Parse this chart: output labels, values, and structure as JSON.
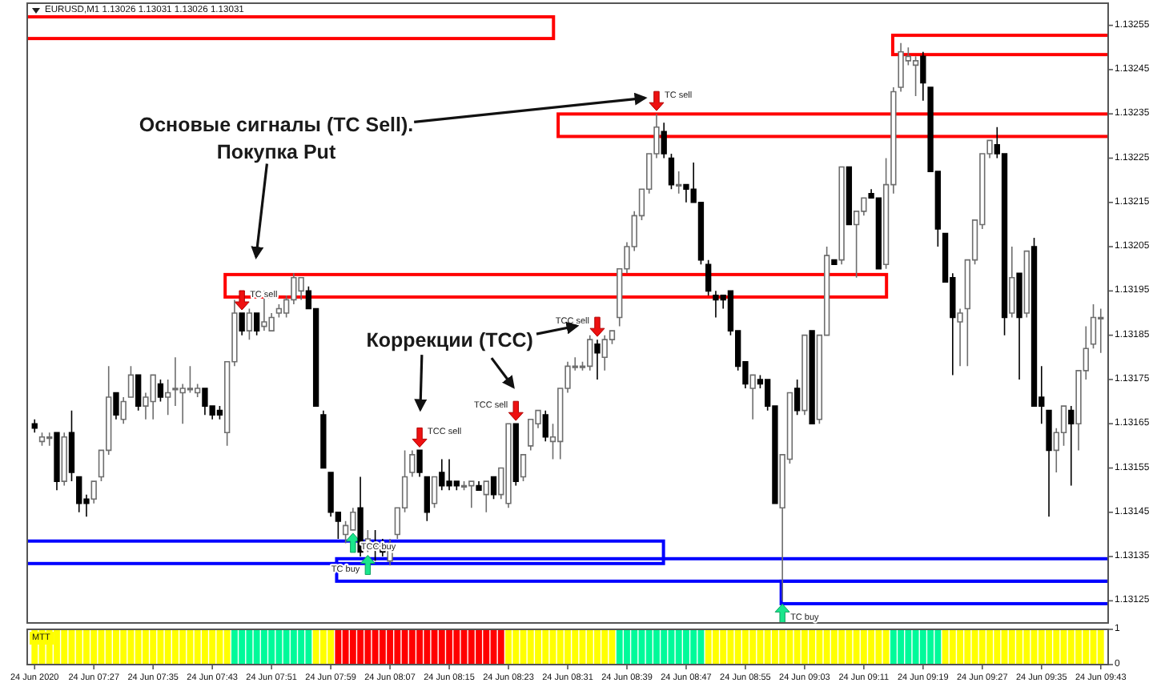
{
  "chart_data": [
    {
      "type": "candlestick",
      "title": "EURUSD,M1 1.13026 1.13031 1.13026 1.13031",
      "x": [
        "2020-06-24T07:19",
        "2020-06-24T07:20",
        "2020-06-24T07:21",
        "2020-06-24T07:22",
        "2020-06-24T07:23",
        "2020-06-24T07:24",
        "2020-06-24T07:25",
        "2020-06-24T07:26",
        "2020-06-24T07:27",
        "2020-06-24T07:28",
        "2020-06-24T07:29",
        "2020-06-24T07:30",
        "2020-06-24T07:31",
        "2020-06-24T07:32",
        "2020-06-24T07:33",
        "2020-06-24T07:34",
        "2020-06-24T07:35",
        "2020-06-24T07:36",
        "2020-06-24T07:37",
        "2020-06-24T07:38",
        "2020-06-24T07:39",
        "2020-06-24T07:40",
        "2020-06-24T07:41",
        "2020-06-24T07:42",
        "2020-06-24T07:43",
        "2020-06-24T07:44",
        "2020-06-24T07:45",
        "2020-06-24T07:46",
        "2020-06-24T07:47",
        "2020-06-24T07:48",
        "2020-06-24T07:49",
        "2020-06-24T07:50",
        "2020-06-24T07:51",
        "2020-06-24T07:52",
        "2020-06-24T07:53",
        "2020-06-24T07:54",
        "2020-06-24T07:55",
        "2020-06-24T07:56",
        "2020-06-24T07:57",
        "2020-06-24T07:58",
        "2020-06-24T07:59",
        "2020-06-24T08:00",
        "2020-06-24T08:01",
        "2020-06-24T08:02",
        "2020-06-24T08:03",
        "2020-06-24T08:04",
        "2020-06-24T08:05",
        "2020-06-24T08:06",
        "2020-06-24T08:07",
        "2020-06-24T08:08",
        "2020-06-24T08:09",
        "2020-06-24T08:10",
        "2020-06-24T08:11",
        "2020-06-24T08:12",
        "2020-06-24T08:13",
        "2020-06-24T08:14",
        "2020-06-24T08:15",
        "2020-06-24T08:16",
        "2020-06-24T08:17",
        "2020-06-24T08:18",
        "2020-06-24T08:19",
        "2020-06-24T08:20",
        "2020-06-24T08:21",
        "2020-06-24T08:22",
        "2020-06-24T08:23",
        "2020-06-24T08:24",
        "2020-06-24T08:25",
        "2020-06-24T08:26",
        "2020-06-24T08:27",
        "2020-06-24T08:28",
        "2020-06-24T08:29",
        "2020-06-24T08:30",
        "2020-06-24T08:31",
        "2020-06-24T08:32",
        "2020-06-24T08:33",
        "2020-06-24T08:34",
        "2020-06-24T08:35",
        "2020-06-24T08:36",
        "2020-06-24T08:37",
        "2020-06-24T08:38",
        "2020-06-24T08:39",
        "2020-06-24T08:40",
        "2020-06-24T08:41",
        "2020-06-24T08:42",
        "2020-06-24T08:43",
        "2020-06-24T08:44",
        "2020-06-24T08:45",
        "2020-06-24T08:46",
        "2020-06-24T08:47",
        "2020-06-24T08:48",
        "2020-06-24T08:49",
        "2020-06-24T08:50",
        "2020-06-24T08:51",
        "2020-06-24T08:52",
        "2020-06-24T08:53",
        "2020-06-24T08:54",
        "2020-06-24T08:55",
        "2020-06-24T08:56",
        "2020-06-24T08:57",
        "2020-06-24T08:58",
        "2020-06-24T08:59",
        "2020-06-24T09:00",
        "2020-06-24T09:01",
        "2020-06-24T09:02",
        "2020-06-24T09:03",
        "2020-06-24T09:04",
        "2020-06-24T09:05",
        "2020-06-24T09:06",
        "2020-06-24T09:07",
        "2020-06-24T09:08",
        "2020-06-24T09:09",
        "2020-06-24T09:10",
        "2020-06-24T09:11",
        "2020-06-24T09:12",
        "2020-06-24T09:13",
        "2020-06-24T09:14",
        "2020-06-24T09:15",
        "2020-06-24T09:16",
        "2020-06-24T09:17",
        "2020-06-24T09:18",
        "2020-06-24T09:19",
        "2020-06-24T09:20",
        "2020-06-24T09:21",
        "2020-06-24T09:22",
        "2020-06-24T09:23",
        "2020-06-24T09:24",
        "2020-06-24T09:25",
        "2020-06-24T09:26",
        "2020-06-24T09:27",
        "2020-06-24T09:28",
        "2020-06-24T09:29",
        "2020-06-24T09:30",
        "2020-06-24T09:31",
        "2020-06-24T09:32",
        "2020-06-24T09:33",
        "2020-06-24T09:34",
        "2020-06-24T09:35",
        "2020-06-24T09:36",
        "2020-06-24T09:37",
        "2020-06-24T09:38",
        "2020-06-24T09:39",
        "2020-06-24T09:40",
        "2020-06-24T09:41",
        "2020-06-24T09:42",
        "2020-06-24T09:43"
      ],
      "ohlc": [
        [
          1.13165,
          1.13166,
          1.13163,
          1.13164
        ],
        [
          1.13161,
          1.13163,
          1.1316,
          1.13162
        ],
        [
          1.13162,
          1.13163,
          1.1316,
          1.13162
        ],
        [
          1.13163,
          1.13163,
          1.1315,
          1.13152
        ],
        [
          1.13152,
          1.13163,
          1.13151,
          1.13162
        ],
        [
          1.13163,
          1.13168,
          1.13152,
          1.13154
        ],
        [
          1.13153,
          1.13153,
          1.13145,
          1.13147
        ],
        [
          1.13148,
          1.13149,
          1.13144,
          1.13147
        ],
        [
          1.13148,
          1.13152,
          1.13147,
          1.13152
        ],
        [
          1.13153,
          1.13159,
          1.13152,
          1.13159
        ],
        [
          1.13159,
          1.13178,
          1.13158,
          1.13171
        ],
        [
          1.13172,
          1.13172,
          1.13166,
          1.13167
        ],
        [
          1.13166,
          1.13171,
          1.13165,
          1.1317
        ],
        [
          1.13171,
          1.13178,
          1.13171,
          1.13176
        ],
        [
          1.13176,
          1.13176,
          1.13168,
          1.13169
        ],
        [
          1.13169,
          1.13172,
          1.13166,
          1.13171
        ],
        [
          1.1317,
          1.13176,
          1.13166,
          1.13176
        ],
        [
          1.13174,
          1.13175,
          1.1317,
          1.13171
        ],
        [
          1.13171,
          1.13175,
          1.13167,
          1.13172
        ],
        [
          1.13173,
          1.1318,
          1.13169,
          1.13173
        ],
        [
          1.13172,
          1.13174,
          1.13165,
          1.13173
        ],
        [
          1.13173,
          1.13178,
          1.13172,
          1.13173
        ],
        [
          1.13172,
          1.13174,
          1.13171,
          1.13173
        ],
        [
          1.13173,
          1.13173,
          1.13167,
          1.13169
        ],
        [
          1.13169,
          1.13169,
          1.13166,
          1.13167
        ],
        [
          1.13168,
          1.13169,
          1.13166,
          1.13167
        ],
        [
          1.13163,
          1.13179,
          1.1316,
          1.13179
        ],
        [
          1.13179,
          1.13193,
          1.13178,
          1.1319
        ],
        [
          1.1319,
          1.1319,
          1.13185,
          1.13186
        ],
        [
          1.13186,
          1.13191,
          1.13184,
          1.1319
        ],
        [
          1.1319,
          1.1319,
          1.13185,
          1.13186
        ],
        [
          1.13187,
          1.13195,
          1.13186,
          1.13188
        ],
        [
          1.13186,
          1.1319,
          1.13186,
          1.13189
        ],
        [
          1.1319,
          1.13192,
          1.13189,
          1.13191
        ],
        [
          1.1319,
          1.13194,
          1.13189,
          1.13193
        ],
        [
          1.13193,
          1.13199,
          1.13192,
          1.13198
        ],
        [
          1.13195,
          1.13198,
          1.13193,
          1.13198
        ],
        [
          1.13195,
          1.13196,
          1.13191,
          1.13191
        ],
        [
          1.13191,
          1.13191,
          1.13169,
          1.13169
        ],
        [
          1.13167,
          1.13168,
          1.13155,
          1.13155
        ],
        [
          1.13154,
          1.13154,
          1.13144,
          1.13145
        ],
        [
          1.13145,
          1.13145,
          1.13139,
          1.13143
        ],
        [
          1.1314,
          1.13143,
          1.13138,
          1.13142
        ],
        [
          1.13141,
          1.13146,
          1.13141,
          1.13145
        ],
        [
          1.13146,
          1.13153,
          1.13135,
          1.13136
        ],
        [
          1.13137,
          1.13141,
          1.13136,
          1.13139
        ],
        [
          1.13138,
          1.13141,
          1.13134,
          1.13137
        ],
        [
          1.13138,
          1.13139,
          1.13135,
          1.13136
        ],
        [
          1.13134,
          1.13139,
          1.13133,
          1.13138
        ],
        [
          1.1314,
          1.13146,
          1.13139,
          1.13146
        ],
        [
          1.13146,
          1.13159,
          1.13145,
          1.13153
        ],
        [
          1.13154,
          1.13159,
          1.13153,
          1.13158
        ],
        [
          1.13159,
          1.13159,
          1.13153,
          1.13154
        ],
        [
          1.13153,
          1.13153,
          1.13143,
          1.13145
        ],
        [
          1.13147,
          1.13153,
          1.13146,
          1.13153
        ],
        [
          1.13154,
          1.13157,
          1.1315,
          1.13151
        ],
        [
          1.13152,
          1.13157,
          1.1315,
          1.13151
        ],
        [
          1.13152,
          1.13152,
          1.1315,
          1.13151
        ],
        [
          1.13151,
          1.13152,
          1.1315,
          1.13151
        ],
        [
          1.13151,
          1.13152,
          1.13146,
          1.13152
        ],
        [
          1.13151,
          1.13152,
          1.1315,
          1.1315
        ],
        [
          1.13149,
          1.13152,
          1.13145,
          1.13152
        ],
        [
          1.13153,
          1.13153,
          1.13148,
          1.13149
        ],
        [
          1.13149,
          1.13155,
          1.13148,
          1.13155
        ],
        [
          1.13147,
          1.13165,
          1.13146,
          1.13165
        ],
        [
          1.13165,
          1.13165,
          1.13151,
          1.13152
        ],
        [
          1.13153,
          1.13158,
          1.13152,
          1.13158
        ],
        [
          1.1316,
          1.13166,
          1.13159,
          1.13166
        ],
        [
          1.13165,
          1.13168,
          1.13164,
          1.13168
        ],
        [
          1.13167,
          1.13168,
          1.13161,
          1.13162
        ],
        [
          1.13161,
          1.13165,
          1.13157,
          1.13162
        ],
        [
          1.13161,
          1.13173,
          1.13157,
          1.13173
        ],
        [
          1.13173,
          1.13179,
          1.13172,
          1.13178
        ],
        [
          1.13178,
          1.1318,
          1.13177,
          1.13178
        ],
        [
          1.13178,
          1.13179,
          1.13177,
          1.13178
        ],
        [
          1.13178,
          1.13185,
          1.13177,
          1.13184
        ],
        [
          1.13183,
          1.13184,
          1.13175,
          1.13181
        ],
        [
          1.1318,
          1.13185,
          1.13177,
          1.13184
        ],
        [
          1.13184,
          1.13186,
          1.13183,
          1.13186
        ],
        [
          1.13189,
          1.132,
          1.13187,
          1.132
        ],
        [
          1.132,
          1.13206,
          1.13199,
          1.13205
        ],
        [
          1.13205,
          1.13213,
          1.13204,
          1.13212
        ],
        [
          1.13212,
          1.13218,
          1.13211,
          1.13218
        ],
        [
          1.13218,
          1.13226,
          1.13217,
          1.13226
        ],
        [
          1.13226,
          1.13235,
          1.13225,
          1.13232
        ],
        [
          1.13231,
          1.13233,
          1.13225,
          1.13226
        ],
        [
          1.13225,
          1.13226,
          1.13218,
          1.13219
        ],
        [
          1.13219,
          1.13222,
          1.13217,
          1.13219
        ],
        [
          1.13219,
          1.13219,
          1.13215,
          1.13218
        ],
        [
          1.13218,
          1.13224,
          1.13215,
          1.13215
        ],
        [
          1.13215,
          1.13215,
          1.13201,
          1.13202
        ],
        [
          1.13201,
          1.13202,
          1.13194,
          1.13195
        ],
        [
          1.13194,
          1.13195,
          1.13189,
          1.13193
        ],
        [
          1.13194,
          1.13194,
          1.13191,
          1.13193
        ],
        [
          1.13195,
          1.13195,
          1.13185,
          1.13186
        ],
        [
          1.13186,
          1.13186,
          1.13177,
          1.13178
        ],
        [
          1.13179,
          1.13179,
          1.13173,
          1.13174
        ],
        [
          1.13173,
          1.13176,
          1.13166,
          1.13176
        ],
        [
          1.13175,
          1.13176,
          1.13173,
          1.13174
        ],
        [
          1.13175,
          1.13175,
          1.13168,
          1.13169
        ],
        [
          1.13169,
          1.13169,
          1.13147,
          1.13147
        ],
        [
          1.13146,
          1.13158,
          1.13125,
          1.13158
        ],
        [
          1.13157,
          1.13172,
          1.13156,
          1.13172
        ],
        [
          1.13173,
          1.13175,
          1.13167,
          1.13168
        ],
        [
          1.13168,
          1.13185,
          1.13167,
          1.13185
        ],
        [
          1.13186,
          1.13186,
          1.13165,
          1.13165
        ],
        [
          1.13166,
          1.13185,
          1.13165,
          1.13185
        ],
        [
          1.13185,
          1.13205,
          1.13185,
          1.13203
        ],
        [
          1.13202,
          1.13202,
          1.13201,
          1.13201
        ],
        [
          1.13202,
          1.13223,
          1.13201,
          1.13223
        ],
        [
          1.13223,
          1.13223,
          1.1321,
          1.1321
        ],
        [
          1.1321,
          1.13213,
          1.13198,
          1.13213
        ],
        [
          1.13213,
          1.13216,
          1.13212,
          1.13216
        ],
        [
          1.13217,
          1.13218,
          1.13216,
          1.13216
        ],
        [
          1.13216,
          1.13216,
          1.132,
          1.132
        ],
        [
          1.13201,
          1.13225,
          1.132,
          1.13219
        ],
        [
          1.13219,
          1.13241,
          1.13217,
          1.1324
        ],
        [
          1.13241,
          1.13251,
          1.1324,
          1.13249
        ],
        [
          1.13247,
          1.1325,
          1.13246,
          1.13248
        ],
        [
          1.13246,
          1.13248,
          1.13239,
          1.13247
        ],
        [
          1.13248,
          1.13249,
          1.13238,
          1.13242
        ],
        [
          1.13241,
          1.13241,
          1.13222,
          1.13222
        ],
        [
          1.13222,
          1.13222,
          1.13205,
          1.13209
        ],
        [
          1.13208,
          1.13208,
          1.13197,
          1.13197
        ],
        [
          1.13198,
          1.13199,
          1.13176,
          1.13189
        ],
        [
          1.13188,
          1.13191,
          1.13178,
          1.1319
        ],
        [
          1.13191,
          1.13202,
          1.13178,
          1.13202
        ],
        [
          1.13202,
          1.13211,
          1.13201,
          1.13211
        ],
        [
          1.1321,
          1.13226,
          1.13209,
          1.13226
        ],
        [
          1.13226,
          1.13229,
          1.13225,
          1.13229
        ],
        [
          1.13228,
          1.13232,
          1.13225,
          1.13226
        ],
        [
          1.13226,
          1.13226,
          1.13185,
          1.13189
        ],
        [
          1.1319,
          1.13205,
          1.13189,
          1.13198
        ],
        [
          1.13199,
          1.13199,
          1.13175,
          1.13189
        ],
        [
          1.1319,
          1.13204,
          1.13189,
          1.13204
        ],
        [
          1.13205,
          1.13207,
          1.13169,
          1.13169
        ],
        [
          1.13171,
          1.13178,
          1.13165,
          1.13169
        ],
        [
          1.13168,
          1.13168,
          1.13144,
          1.13159
        ],
        [
          1.13159,
          1.13164,
          1.13154,
          1.13163
        ],
        [
          1.13163,
          1.13169,
          1.1316,
          1.13169
        ],
        [
          1.13168,
          1.13169,
          1.13151,
          1.13165
        ],
        [
          1.13165,
          1.13177,
          1.13159,
          1.13177
        ],
        [
          1.13177,
          1.13187,
          1.13175,
          1.13182
        ],
        [
          1.13183,
          1.13192,
          1.13182,
          1.13189
        ],
        [
          1.13189,
          1.13191,
          1.13181,
          1.13189
        ]
      ],
      "xlim": [
        "2020-06-24T07:18",
        "2020-06-24T09:44"
      ],
      "ylim": [
        1.1312,
        1.1326
      ],
      "yticks": [
        1.13125,
        1.13135,
        1.13145,
        1.13155,
        1.13165,
        1.13175,
        1.13185,
        1.13195,
        1.13205,
        1.13215,
        1.13225,
        1.13235,
        1.13245,
        1.13255
      ],
      "tick_labels": "y",
      "annotations": [
        "Основые сигналы (TC Sell).\nПокупка Put",
        "Коррекции (TCC)",
        {
          "text": "TC sell",
          "x": "2020-06-24T07:47",
          "y": 1.1319
        },
        {
          "text": "TCC sell",
          "x": "2020-06-24T08:11",
          "y": 1.13159
        },
        {
          "text": "TCC sell",
          "x": "2020-06-24T08:24",
          "y": 1.13165
        },
        {
          "text": "TCC sell",
          "x": "2020-06-24T08:35",
          "y": 1.13184
        },
        {
          "text": "TC sell",
          "x": "2020-06-24T08:43",
          "y": 1.13235
        },
        {
          "text": "TCC buy",
          "x": "2020-06-24T08:02",
          "y": 1.13141
        },
        {
          "text": "TC buy",
          "x": "2020-06-24T08:04",
          "y": 1.13136
        },
        {
          "text": "TC buy",
          "x": "2020-06-24T09:00",
          "y": 1.13125
        }
      ]
    },
    {
      "type": "bar",
      "title": "MTT",
      "x": [
        "2020-06-24T07:19",
        "2020-06-24T07:20",
        "2020-06-24T07:21",
        "2020-06-24T07:22",
        "2020-06-24T07:23",
        "2020-06-24T07:24",
        "2020-06-24T07:25",
        "2020-06-24T07:26",
        "2020-06-24T07:27",
        "2020-06-24T07:28",
        "2020-06-24T07:29",
        "2020-06-24T07:30",
        "2020-06-24T07:31",
        "2020-06-24T07:32",
        "2020-06-24T07:33",
        "2020-06-24T07:34",
        "2020-06-24T07:35",
        "2020-06-24T07:36",
        "2020-06-24T07:37",
        "2020-06-24T07:38",
        "2020-06-24T07:39",
        "2020-06-24T07:40",
        "2020-06-24T07:41",
        "2020-06-24T07:42",
        "2020-06-24T07:43",
        "2020-06-24T07:44",
        "2020-06-24T07:45",
        "2020-06-24T07:46",
        "2020-06-24T07:47",
        "2020-06-24T07:48",
        "2020-06-24T07:49",
        "2020-06-24T07:50",
        "2020-06-24T07:51",
        "2020-06-24T07:52",
        "2020-06-24T07:53",
        "2020-06-24T07:54",
        "2020-06-24T07:55",
        "2020-06-24T07:56",
        "2020-06-24T07:57",
        "2020-06-24T07:58",
        "2020-06-24T07:59",
        "2020-06-24T08:00",
        "2020-06-24T08:01",
        "2020-06-24T08:02",
        "2020-06-24T08:03",
        "2020-06-24T08:04",
        "2020-06-24T08:05",
        "2020-06-24T08:06",
        "2020-06-24T08:07",
        "2020-06-24T08:08",
        "2020-06-24T08:09",
        "2020-06-24T08:10",
        "2020-06-24T08:11",
        "2020-06-24T08:12",
        "2020-06-24T08:13",
        "2020-06-24T08:14",
        "2020-06-24T08:15",
        "2020-06-24T08:16",
        "2020-06-24T08:17",
        "2020-06-24T08:18",
        "2020-06-24T08:19",
        "2020-06-24T08:20",
        "2020-06-24T08:21",
        "2020-06-24T08:22",
        "2020-06-24T08:23",
        "2020-06-24T08:24",
        "2020-06-24T08:25",
        "2020-06-24T08:26",
        "2020-06-24T08:27",
        "2020-06-24T08:28",
        "2020-06-24T08:29",
        "2020-06-24T08:30",
        "2020-06-24T08:31",
        "2020-06-24T08:32",
        "2020-06-24T08:33",
        "2020-06-24T08:34",
        "2020-06-24T08:35",
        "2020-06-24T08:36",
        "2020-06-24T08:37",
        "2020-06-24T08:38",
        "2020-06-24T08:39",
        "2020-06-24T08:40",
        "2020-06-24T08:41",
        "2020-06-24T08:42",
        "2020-06-24T08:43",
        "2020-06-24T08:44",
        "2020-06-24T08:45",
        "2020-06-24T08:46",
        "2020-06-24T08:47",
        "2020-06-24T08:48",
        "2020-06-24T08:49",
        "2020-06-24T08:50",
        "2020-06-24T08:51",
        "2020-06-24T08:52",
        "2020-06-24T08:53",
        "2020-06-24T08:54",
        "2020-06-24T08:55",
        "2020-06-24T08:56",
        "2020-06-24T08:57",
        "2020-06-24T08:58",
        "2020-06-24T08:59",
        "2020-06-24T09:00",
        "2020-06-24T09:01",
        "2020-06-24T09:02",
        "2020-06-24T09:03",
        "2020-06-24T09:04",
        "2020-06-24T09:05",
        "2020-06-24T09:06",
        "2020-06-24T09:07",
        "2020-06-24T09:08",
        "2020-06-24T09:09",
        "2020-06-24T09:10",
        "2020-06-24T09:11",
        "2020-06-24T09:12",
        "2020-06-24T09:13",
        "2020-06-24T09:14",
        "2020-06-24T09:15",
        "2020-06-24T09:16",
        "2020-06-24T09:17",
        "2020-06-24T09:18",
        "2020-06-24T09:19",
        "2020-06-24T09:20",
        "2020-06-24T09:21",
        "2020-06-24T09:22",
        "2020-06-24T09:23",
        "2020-06-24T09:24",
        "2020-06-24T09:25",
        "2020-06-24T09:26",
        "2020-06-24T09:27",
        "2020-06-24T09:28",
        "2020-06-24T09:29",
        "2020-06-24T09:30",
        "2020-06-24T09:31",
        "2020-06-24T09:32",
        "2020-06-24T09:33",
        "2020-06-24T09:34",
        "2020-06-24T09:35",
        "2020-06-24T09:36",
        "2020-06-24T09:37",
        "2020-06-24T09:38",
        "2020-06-24T09:39",
        "2020-06-24T09:40",
        "2020-06-24T09:41",
        "2020-06-24T09:42",
        "2020-06-24T09:43"
      ],
      "values": [
        1,
        1,
        1,
        1,
        1,
        1,
        1,
        1,
        1,
        1,
        1,
        1,
        1,
        1,
        1,
        1,
        1,
        1,
        1,
        1,
        1,
        1,
        1,
        1,
        1,
        1,
        1,
        1,
        1,
        1,
        1,
        1,
        1,
        1,
        1,
        1,
        1,
        1,
        1,
        1,
        1,
        1,
        1,
        1,
        1,
        1,
        1,
        1,
        1,
        1,
        1,
        1,
        1,
        1,
        1,
        1,
        1,
        1,
        1,
        1,
        1,
        1,
        1,
        1,
        1,
        1,
        1,
        1,
        1,
        1,
        1,
        1,
        1,
        1,
        1,
        1,
        1,
        1,
        1,
        1,
        1,
        1,
        1,
        1,
        1,
        1,
        1,
        1,
        1,
        1,
        1,
        1,
        1,
        1,
        1,
        1,
        1,
        1,
        1,
        1,
        1,
        1,
        1,
        1,
        1,
        1,
        1,
        1,
        1,
        1,
        1,
        1,
        1,
        1,
        1,
        1,
        1,
        1,
        1,
        1,
        1,
        1,
        1,
        1,
        1,
        1,
        1,
        1,
        1,
        1,
        1,
        1,
        1,
        1,
        1,
        1,
        1,
        1,
        1,
        1,
        1,
        1,
        1,
        1,
        1
      ],
      "colors": [
        "#ffff00",
        "#ffff00",
        "#ffff00",
        "#ffff00",
        "#ffff00",
        "#ffff00",
        "#ffff00",
        "#ffff00",
        "#ffff00",
        "#ffff00",
        "#ffff00",
        "#ffff00",
        "#ffff00",
        "#ffff00",
        "#ffff00",
        "#ffff00",
        "#ffff00",
        "#ffff00",
        "#ffff00",
        "#ffff00",
        "#ffff00",
        "#ffff00",
        "#ffff00",
        "#ffff00",
        "#ffff00",
        "#ffff00",
        "#ffff00",
        "#00fa9a",
        "#00fa9a",
        "#00fa9a",
        "#00fa9a",
        "#00fa9a",
        "#00fa9a",
        "#00fa9a",
        "#00fa9a",
        "#00fa9a",
        "#00fa9a",
        "#00fa9a",
        "#ffff00",
        "#ffff00",
        "#ffff00",
        "#ff0000",
        "#ff0000",
        "#ff0000",
        "#ff0000",
        "#ff0000",
        "#ff0000",
        "#ff0000",
        "#ff0000",
        "#ff0000",
        "#ff0000",
        "#ff0000",
        "#ff0000",
        "#ff0000",
        "#ff0000",
        "#ff0000",
        "#ff0000",
        "#ff0000",
        "#ff0000",
        "#ff0000",
        "#ff0000",
        "#ff0000",
        "#ff0000",
        "#ff0000",
        "#ffff00",
        "#ffff00",
        "#ffff00",
        "#ffff00",
        "#ffff00",
        "#ffff00",
        "#ffff00",
        "#ffff00",
        "#ffff00",
        "#ffff00",
        "#ffff00",
        "#ffff00",
        "#ffff00",
        "#ffff00",
        "#ffff00",
        "#00fa9a",
        "#00fa9a",
        "#00fa9a",
        "#00fa9a",
        "#00fa9a",
        "#00fa9a",
        "#00fa9a",
        "#00fa9a",
        "#00fa9a",
        "#00fa9a",
        "#00fa9a",
        "#00fa9a",
        "#ffff00",
        "#ffff00",
        "#ffff00",
        "#ffff00",
        "#ffff00",
        "#ffff00",
        "#ffff00",
        "#ffff00",
        "#ffff00",
        "#ffff00",
        "#ffff00",
        "#ffff00",
        "#ffff00",
        "#ffff00",
        "#ffff00",
        "#ffff00",
        "#ffff00",
        "#ffff00",
        "#ffff00",
        "#ffff00",
        "#ffff00",
        "#ffff00",
        "#ffff00",
        "#ffff00",
        "#ffff00",
        "#00fa9a",
        "#00fa9a",
        "#00fa9a",
        "#00fa9a",
        "#00fa9a",
        "#00fa9a",
        "#00fa9a",
        "#ffff00",
        "#ffff00",
        "#ffff00",
        "#ffff00",
        "#ffff00",
        "#ffff00",
        "#ffff00",
        "#ffff00",
        "#ffff00",
        "#ffff00",
        "#ffff00",
        "#ffff00",
        "#ffff00",
        "#ffff00",
        "#ffff00",
        "#ffff00",
        "#ffff00",
        "#ffff00",
        "#ffff00",
        "#ffff00",
        "#ffff00",
        "#ffff00"
      ],
      "xlim": [
        "2020-06-24T07:18",
        "2020-06-24T09:44"
      ],
      "xticks": [
        {
          "value": "2020-06-24T07:19",
          "label": "24 Jun 2020"
        },
        {
          "value": "2020-06-24T07:27",
          "label": "24 Jun 07:27"
        },
        {
          "value": "2020-06-24T07:35",
          "label": "24 Jun 07:35"
        },
        {
          "value": "2020-06-24T07:43",
          "label": "24 Jun 07:43"
        },
        {
          "value": "2020-06-24T07:51",
          "label": "24 Jun 07:51"
        },
        {
          "value": "2020-06-24T07:59",
          "label": "24 Jun 07:59"
        },
        {
          "value": "2020-06-24T08:07",
          "label": "24 Jun 08:07"
        },
        {
          "value": "2020-06-24T08:15",
          "label": "24 Jun 08:15"
        },
        {
          "value": "2020-06-24T08:23",
          "label": "24 Jun 08:23"
        },
        {
          "value": "2020-06-24T08:31",
          "label": "24 Jun 08:31"
        },
        {
          "value": "2020-06-24T08:39",
          "label": "24 Jun 08:39"
        },
        {
          "value": "2020-06-24T08:47",
          "label": "24 Jun 08:47"
        },
        {
          "value": "2020-06-24T08:55",
          "label": "24 Jun 08:55"
        },
        {
          "value": "2020-06-24T09:03",
          "label": "24 Jun 09:03"
        },
        {
          "value": "2020-06-24T09:11",
          "label": "24 Jun 09:11"
        },
        {
          "value": "2020-06-24T09:19",
          "label": "24 Jun 09:19"
        },
        {
          "value": "2020-06-24T09:27",
          "label": "24 Jun 09:27"
        },
        {
          "value": "2020-06-24T09:35",
          "label": "24 Jun 09:35"
        },
        {
          "value": "2020-06-24T09:43",
          "label": "24 Jun 09:43"
        }
      ],
      "ylim": [
        0,
        1
      ],
      "yticks": [
        0,
        1
      ]
    }
  ]
}
